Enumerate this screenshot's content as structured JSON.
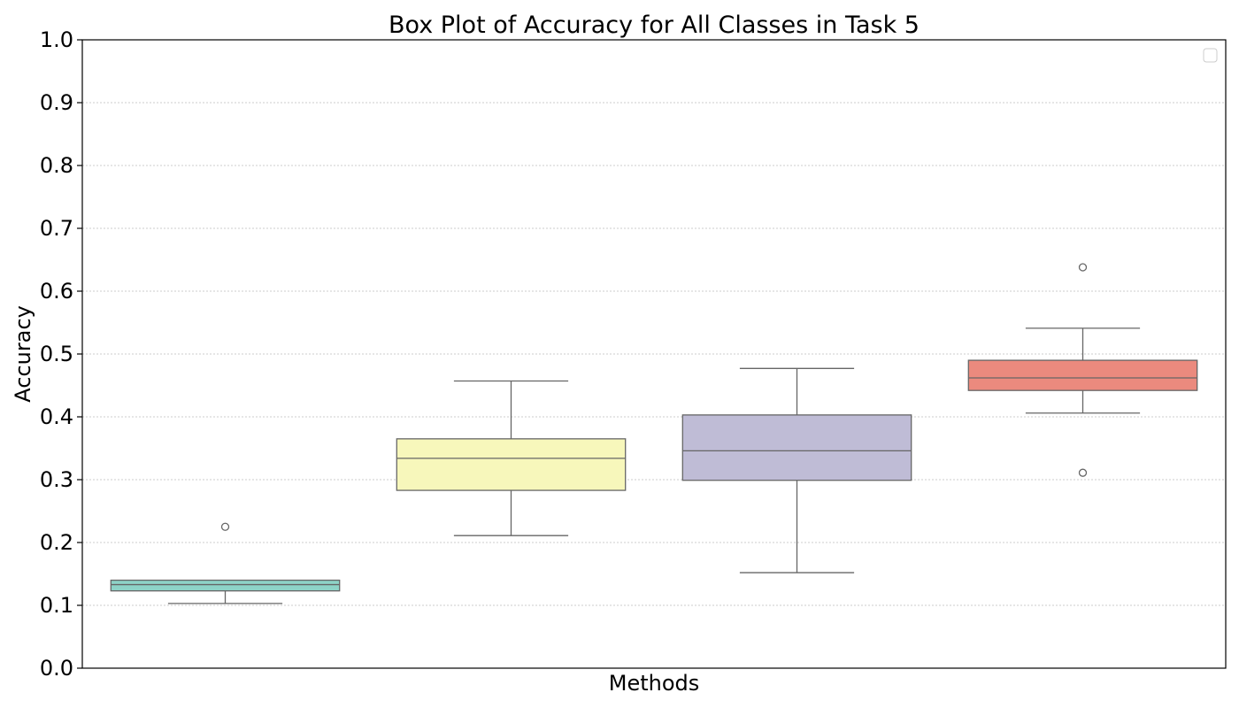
{
  "chart_data": {
    "type": "box",
    "title": "Box Plot of Accuracy for All Classes in Task 5",
    "xlabel": "Methods",
    "ylabel": "Accuracy",
    "ylim": [
      0.0,
      1.0
    ],
    "yticks": [
      "0.0",
      "0.1",
      "0.2",
      "0.3",
      "0.4",
      "0.5",
      "0.6",
      "0.7",
      "0.8",
      "0.9",
      "1.0"
    ],
    "grid": "horizontal dotted",
    "legend": "top-right (empty)",
    "boxes": [
      {
        "color": "#8dd3c7",
        "whisker_low": 0.103,
        "q1": 0.123,
        "median": 0.133,
        "q3": 0.14,
        "whisker_high": 0.14,
        "outliers": [
          0.225
        ]
      },
      {
        "color": "#f7f7bb",
        "whisker_low": 0.211,
        "q1": 0.283,
        "median": 0.334,
        "q3": 0.365,
        "whisker_high": 0.457,
        "outliers": []
      },
      {
        "color": "#bfbcd6",
        "whisker_low": 0.152,
        "q1": 0.299,
        "median": 0.346,
        "q3": 0.403,
        "whisker_high": 0.477,
        "outliers": []
      },
      {
        "color": "#eb8a7e",
        "whisker_low": 0.406,
        "q1": 0.442,
        "median": 0.462,
        "q3": 0.49,
        "whisker_high": 0.541,
        "outliers": [
          0.638,
          0.311
        ]
      }
    ]
  }
}
